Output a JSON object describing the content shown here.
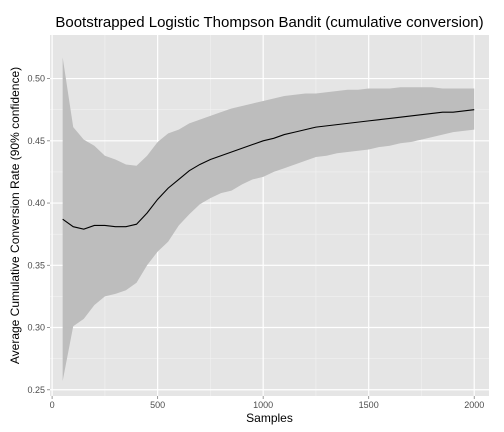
{
  "chart_data": {
    "type": "line",
    "title": "Bootstrapped Logistic Thompson Bandit (cumulative conversion)",
    "xlabel": "Samples",
    "ylabel": "Average Cumulative Conversion Rate (90% confidence)",
    "xlim": [
      -10,
      2070
    ],
    "ylim": [
      0.245,
      0.535
    ],
    "x_ticks": [
      0,
      500,
      1000,
      1500,
      2000
    ],
    "x_tick_labels": [
      "0",
      "500",
      "1000",
      "1500",
      "2000"
    ],
    "y_ticks": [
      0.25,
      0.3,
      0.35,
      0.4,
      0.45,
      0.5
    ],
    "y_tick_labels": [
      "0.25",
      "0.30",
      "0.35",
      "0.40",
      "0.45",
      "0.50"
    ],
    "grid": true,
    "background": "#e5e5e5",
    "ribbon_color": "#bdbdbd",
    "line_color": "#000000",
    "series": [
      {
        "x": [
          50,
          100,
          150,
          200,
          250,
          300,
          350,
          400,
          450,
          500,
          550,
          600,
          650,
          700,
          750,
          800,
          850,
          900,
          950,
          1000,
          1050,
          1100,
          1150,
          1200,
          1250,
          1300,
          1350,
          1400,
          1450,
          1500,
          1550,
          1600,
          1650,
          1700,
          1750,
          1800,
          1850,
          1900,
          1950,
          2000
        ],
        "mean": [
          0.387,
          0.381,
          0.379,
          0.382,
          0.382,
          0.381,
          0.381,
          0.383,
          0.392,
          0.403,
          0.412,
          0.419,
          0.426,
          0.431,
          0.435,
          0.438,
          0.441,
          0.444,
          0.447,
          0.45,
          0.452,
          0.455,
          0.457,
          0.459,
          0.461,
          0.462,
          0.463,
          0.464,
          0.465,
          0.466,
          0.467,
          0.468,
          0.469,
          0.47,
          0.471,
          0.472,
          0.473,
          0.473,
          0.474,
          0.475
        ],
        "upper": [
          0.517,
          0.461,
          0.451,
          0.446,
          0.438,
          0.435,
          0.431,
          0.43,
          0.438,
          0.449,
          0.456,
          0.459,
          0.464,
          0.467,
          0.47,
          0.473,
          0.476,
          0.478,
          0.48,
          0.482,
          0.484,
          0.486,
          0.487,
          0.488,
          0.488,
          0.489,
          0.49,
          0.491,
          0.491,
          0.492,
          0.492,
          0.492,
          0.493,
          0.493,
          0.493,
          0.493,
          0.492,
          0.492,
          0.492,
          0.492
        ],
        "lower": [
          0.257,
          0.301,
          0.307,
          0.318,
          0.325,
          0.327,
          0.33,
          0.336,
          0.35,
          0.361,
          0.369,
          0.382,
          0.391,
          0.399,
          0.404,
          0.408,
          0.41,
          0.415,
          0.419,
          0.421,
          0.425,
          0.428,
          0.431,
          0.434,
          0.437,
          0.438,
          0.44,
          0.441,
          0.442,
          0.443,
          0.445,
          0.446,
          0.448,
          0.449,
          0.451,
          0.453,
          0.455,
          0.457,
          0.458,
          0.459
        ]
      }
    ]
  }
}
